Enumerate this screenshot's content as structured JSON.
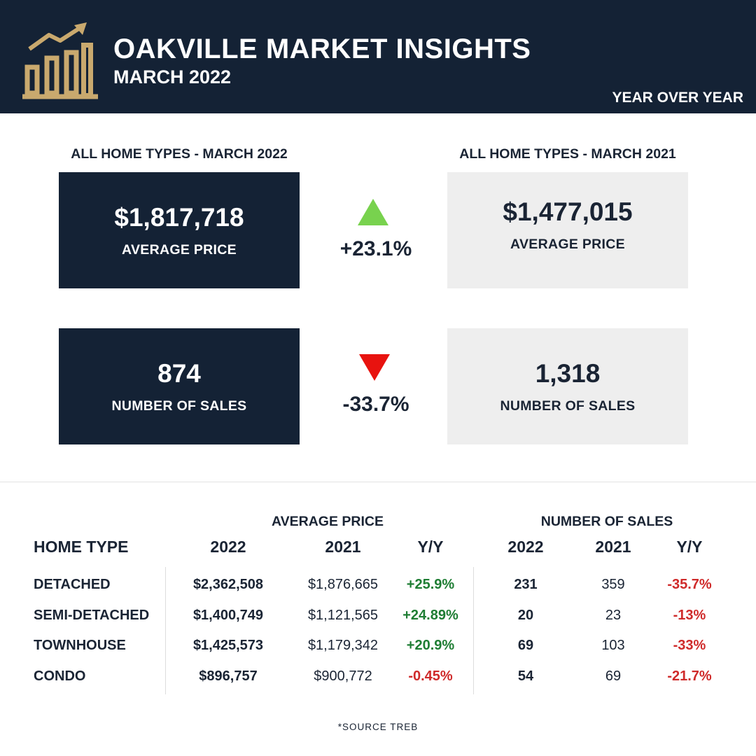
{
  "header": {
    "title": "OAKVILLE MARKET INSIGHTS",
    "subtitle": "MARCH 2022",
    "yoy_label": "YEAR OVER YEAR",
    "logo_icon": "rising-bar-chart-icon",
    "logo_color": "#c9a96e"
  },
  "summary": {
    "left_heading": "ALL HOME TYPES - MARCH 2022",
    "right_heading": "ALL HOME TYPES - MARCH 2021",
    "price": {
      "current_value": "$1,817,718",
      "current_label": "AVERAGE PRICE",
      "prior_value": "$1,477,015",
      "prior_label": "AVERAGE PRICE",
      "change": "+23.1%",
      "direction": "up"
    },
    "sales": {
      "current_value": "874",
      "current_label": "NUMBER OF SALES",
      "prior_value": "1,318",
      "prior_label": "NUMBER OF SALES",
      "change": "-33.7%",
      "direction": "down"
    }
  },
  "table": {
    "group_price": "AVERAGE PRICE",
    "group_sales": "NUMBER OF SALES",
    "headers": {
      "type": "HOME TYPE",
      "p2022": "2022",
      "p2021": "2021",
      "pyy": "Y/Y",
      "s2022": "2022",
      "s2021": "2021",
      "syy": "Y/Y"
    },
    "rows": [
      {
        "type": "DETACHED",
        "p2022": "$2,362,508",
        "p2021": "$1,876,665",
        "pyy": "+25.9%",
        "s2022": "231",
        "s2021": "359",
        "syy": "-35.7%"
      },
      {
        "type": "SEMI-DETACHED",
        "p2022": "$1,400,749",
        "p2021": "$1,121,565",
        "pyy": "+24.89%",
        "s2022": "20",
        "s2021": "23",
        "syy": "-13%"
      },
      {
        "type": "TOWNHOUSE",
        "p2022": "$1,425,573",
        "p2021": "$1,179,342",
        "pyy": "+20.9%",
        "s2022": "69",
        "s2021": "103",
        "syy": "-33%"
      },
      {
        "type": "CONDO",
        "p2022": "$896,757",
        "p2021": "$900,772",
        "pyy": "-0.45%",
        "s2022": "54",
        "s2021": "69",
        "syy": "-21.7%"
      }
    ]
  },
  "footer": {
    "source": "*SOURCE TREB"
  },
  "colors": {
    "navy": "#142235",
    "up_arrow": "#78d24e",
    "down_arrow": "#e8130f",
    "positive": "#1e7d33",
    "negative": "#cf2a2a",
    "light_box": "#eeeeee"
  }
}
